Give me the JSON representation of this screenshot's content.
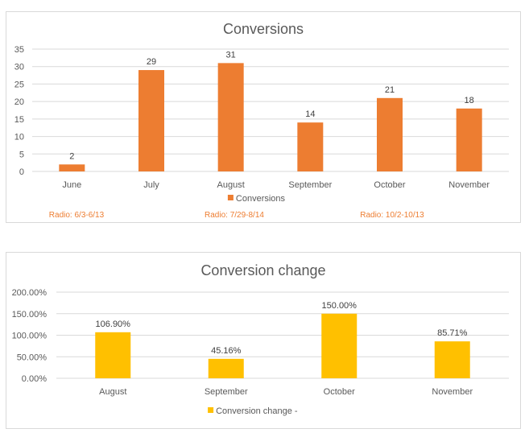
{
  "chart_data": [
    {
      "type": "bar",
      "title": "Conversions",
      "categories": [
        "June",
        "July",
        "August",
        "September",
        "October",
        "November"
      ],
      "series": [
        {
          "name": "Conversions",
          "values": [
            2,
            29,
            31,
            14,
            21,
            18
          ],
          "color": "#ED7D31"
        }
      ],
      "data_labels": [
        "2",
        "29",
        "31",
        "14",
        "21",
        "18"
      ],
      "ylim": [
        0,
        35
      ],
      "yticks": [
        "0",
        "5",
        "10",
        "15",
        "20",
        "25",
        "30",
        "35"
      ],
      "grid": true,
      "legend": "bottom",
      "annotations": [
        "Radio: 6/3-6/13",
        "Radio: 7/29-8/14",
        "Radio: 10/2-10/13"
      ],
      "annotation_color": "#ED7D31"
    },
    {
      "type": "bar",
      "title": "Conversion change",
      "categories": [
        "August",
        "September",
        "October",
        "November"
      ],
      "series": [
        {
          "name": "Conversion change -",
          "values": [
            106.9,
            45.16,
            150.0,
            85.71
          ],
          "color": "#FFC000"
        }
      ],
      "data_labels": [
        "106.90%",
        "45.16%",
        "150.00%",
        "85.71%"
      ],
      "ylim": [
        0,
        200
      ],
      "yticks": [
        "0.00%",
        "50.00%",
        "100.00%",
        "150.00%",
        "200.00%"
      ],
      "grid": true,
      "legend": "bottom"
    }
  ]
}
